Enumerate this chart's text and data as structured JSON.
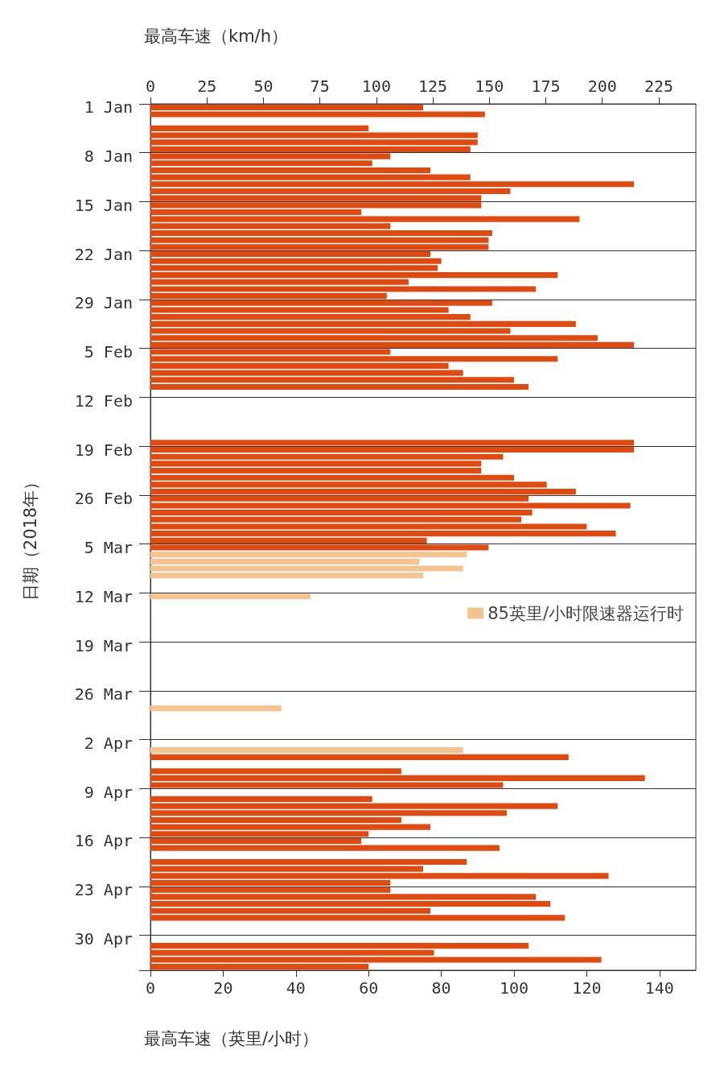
{
  "chart_data": {
    "type": "bar",
    "orientation": "horizontal",
    "xlabel": "最高车速（英里/小时）",
    "x2label": "最高车速（km/h）",
    "ylabel": "日期（2018年）",
    "categories": [
      "1 Jan",
      null,
      null,
      null,
      null,
      null,
      null,
      "8 Jan",
      null,
      null,
      null,
      null,
      null,
      null,
      "15 Jan",
      null,
      null,
      null,
      null,
      null,
      null,
      "22 Jan",
      null,
      null,
      null,
      null,
      null,
      null,
      "29 Jan",
      null,
      null,
      null,
      null,
      null,
      null,
      "5 Feb",
      null,
      null,
      null,
      null,
      null,
      null,
      "12 Feb",
      null,
      null,
      null,
      null,
      null,
      null,
      "19 Feb",
      null,
      null,
      null,
      null,
      null,
      null,
      "26 Feb",
      null,
      null,
      null,
      null,
      null,
      null,
      "5 Mar",
      null,
      null,
      null,
      null,
      null,
      null,
      "12 Mar",
      null,
      null,
      null,
      null,
      null,
      null,
      "19 Mar",
      null,
      null,
      null,
      null,
      null,
      null,
      "26 Mar",
      null,
      null,
      null,
      null,
      null,
      null,
      "2 Apr",
      null,
      null,
      null,
      null,
      null,
      null,
      "9 Apr",
      null,
      null,
      null,
      null,
      null,
      null,
      "16 Apr",
      null,
      null,
      null,
      null,
      null,
      null,
      "23 Apr",
      null,
      null,
      null,
      null,
      null,
      null,
      "30 Apr",
      null,
      null,
      null,
      null
    ],
    "series": [
      {
        "color": "#e04a10",
        "values": [
          75,
          92,
          null,
          60,
          90,
          90,
          88,
          66,
          61,
          77,
          88,
          133,
          99,
          91,
          91,
          58,
          118,
          66,
          94,
          93,
          93,
          77,
          80,
          79,
          112,
          71,
          106,
          65,
          94,
          82,
          88,
          117,
          99,
          123,
          133,
          66,
          112,
          82,
          86,
          100,
          104,
          null,
          null,
          null,
          null,
          null,
          null,
          null,
          133,
          133,
          97,
          91,
          91,
          100,
          109,
          117,
          104,
          132,
          105,
          102,
          120,
          128,
          76,
          93,
          null,
          null,
          null,
          null,
          null,
          null,
          null,
          null,
          null,
          null,
          null,
          null,
          null,
          null,
          null,
          null,
          null,
          null,
          null,
          null,
          null,
          null,
          null,
          null,
          null,
          null,
          null,
          null,
          null,
          115,
          null,
          69,
          136,
          97,
          null,
          61,
          112,
          98,
          69,
          77,
          60,
          58,
          96,
          null,
          87,
          75,
          126,
          66,
          66,
          106,
          110,
          77,
          114,
          null,
          null,
          null,
          104,
          78,
          124,
          60
        ]
      },
      {
        "name": "85英里/小时限速器运行时",
        "color": "#f4c38f",
        "values": [
          null,
          null,
          null,
          null,
          null,
          null,
          null,
          null,
          null,
          null,
          null,
          null,
          null,
          null,
          null,
          null,
          null,
          null,
          null,
          null,
          null,
          null,
          null,
          null,
          null,
          null,
          null,
          null,
          null,
          null,
          null,
          null,
          null,
          null,
          null,
          null,
          null,
          null,
          null,
          null,
          null,
          null,
          null,
          null,
          null,
          null,
          null,
          null,
          null,
          null,
          null,
          null,
          null,
          null,
          null,
          null,
          null,
          null,
          null,
          null,
          null,
          null,
          null,
          null,
          87,
          74,
          86,
          75,
          null,
          null,
          44,
          null,
          null,
          null,
          null,
          null,
          null,
          null,
          null,
          null,
          null,
          null,
          null,
          null,
          null,
          null,
          36,
          null,
          null,
          null,
          null,
          null,
          86,
          null,
          null,
          null,
          null,
          null,
          null,
          null,
          null,
          null,
          null,
          null,
          null,
          null,
          null,
          null,
          null,
          null,
          null,
          null,
          null,
          null,
          null,
          null,
          null,
          null,
          null,
          null,
          null,
          null,
          null,
          null
        ]
      }
    ],
    "xlim": [
      0,
      150
    ],
    "xticks": [
      0,
      20,
      40,
      60,
      80,
      100,
      120,
      140
    ],
    "x2lim": [
      0,
      241.4
    ],
    "x2ticks": [
      0,
      25,
      50,
      75,
      100,
      125,
      150,
      175,
      200,
      225
    ],
    "grid": "y",
    "legend": "right"
  }
}
